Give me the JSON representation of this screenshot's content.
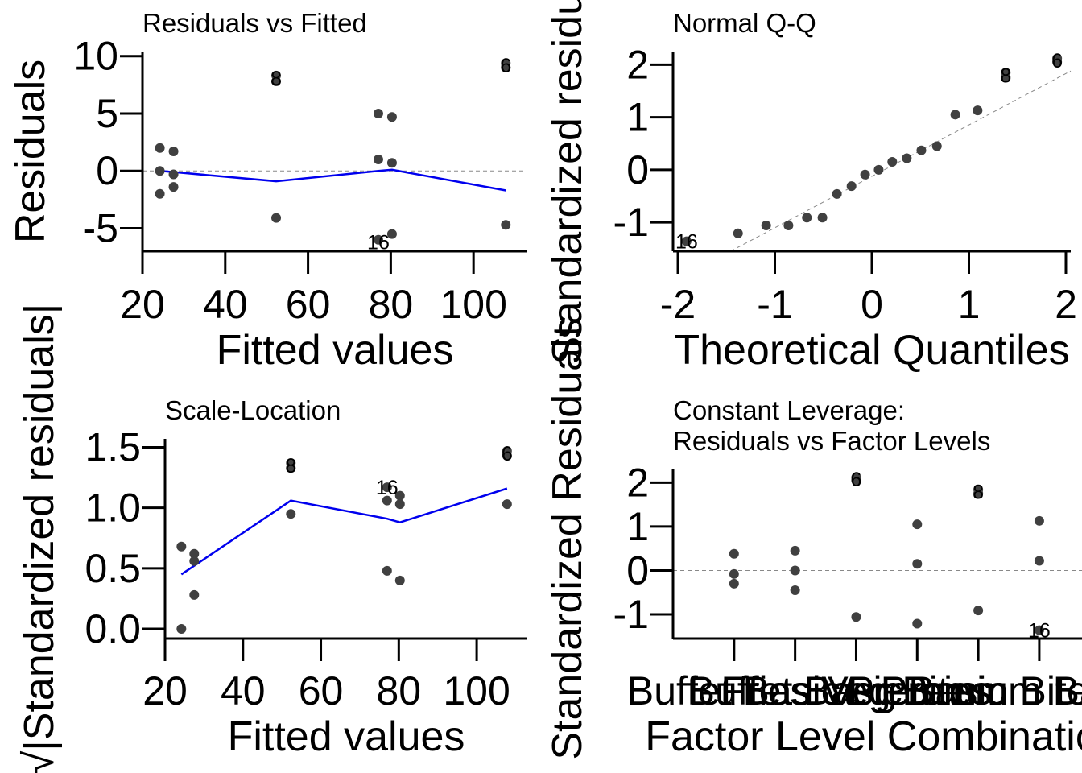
{
  "chart_data": [
    {
      "id": "rvf",
      "type": "scatter",
      "title": "Residuals vs Fitted",
      "xlabel": "Fitted values",
      "ylabel": "Residuals",
      "xlim": [
        20,
        113
      ],
      "ylim": [
        -7,
        10.4
      ],
      "xticks": [
        20,
        40,
        60,
        80,
        100
      ],
      "yticks": [
        -5,
        0,
        5,
        10
      ],
      "xticklabels": [
        "20",
        "40",
        "60",
        "80",
        "100"
      ],
      "yticklabels": [
        "-5",
        "0",
        "5",
        "10"
      ],
      "reference_line": {
        "type": "hline",
        "y": 0
      },
      "points": [
        {
          "x": 24.2,
          "y": 2.0
        },
        {
          "x": 24.2,
          "y": 0.0
        },
        {
          "x": 24.2,
          "y": -2.0
        },
        {
          "x": 27.5,
          "y": 1.7
        },
        {
          "x": 27.5,
          "y": -0.3
        },
        {
          "x": 27.5,
          "y": -1.4
        },
        {
          "x": 52.3,
          "y": 8.3
        },
        {
          "x": 52.3,
          "y": 7.8
        },
        {
          "x": 52.3,
          "y": -4.1
        },
        {
          "x": 77.0,
          "y": 5.0
        },
        {
          "x": 77.0,
          "y": 1.0
        },
        {
          "x": 77.0,
          "y": -6.0
        },
        {
          "x": 80.3,
          "y": 4.7
        },
        {
          "x": 80.3,
          "y": 0.7
        },
        {
          "x": 80.3,
          "y": -5.5
        },
        {
          "x": 107.8,
          "y": 9.4
        },
        {
          "x": 107.8,
          "y": 9.0
        },
        {
          "x": 107.8,
          "y": -4.7
        }
      ],
      "point_labels": [
        {
          "x": 52.3,
          "y": 8.1,
          "text": "8"
        },
        {
          "x": 107.8,
          "y": 9.2,
          "text": "6"
        },
        {
          "x": 77.0,
          "y": -6.2,
          "text": "16"
        }
      ],
      "smoother": {
        "x": [
          24.2,
          27.5,
          52.3,
          77.0,
          80.3,
          107.8
        ],
        "y": [
          0.0,
          -0.1,
          -0.9,
          0.0,
          0.1,
          -1.7
        ]
      }
    },
    {
      "id": "qq",
      "type": "scatter",
      "title": "Normal Q-Q",
      "xlabel": "Theoretical Quantiles",
      "ylabel": "Standardized residuals",
      "xlim": [
        -2.05,
        2.05
      ],
      "ylim": [
        -1.55,
        2.25
      ],
      "xticks": [
        -2,
        -1,
        0,
        1,
        2
      ],
      "yticks": [
        -1,
        0,
        1,
        2
      ],
      "xticklabels": [
        "-2",
        "-1",
        "0",
        "1",
        "2"
      ],
      "yticklabels": [
        "-1",
        "0",
        "1",
        "2"
      ],
      "reference_line": {
        "type": "line",
        "x": [
          -2.05,
          2.05
        ],
        "y": [
          -2.13,
          1.88
        ]
      },
      "points": [
        {
          "x": -1.91,
          "y": -1.36
        },
        {
          "x": -1.38,
          "y": -1.21
        },
        {
          "x": -1.09,
          "y": -1.06
        },
        {
          "x": -0.86,
          "y": -1.06
        },
        {
          "x": -0.67,
          "y": -0.91
        },
        {
          "x": -0.51,
          "y": -0.91
        },
        {
          "x": -0.36,
          "y": -0.46
        },
        {
          "x": -0.21,
          "y": -0.31
        },
        {
          "x": -0.07,
          "y": -0.09
        },
        {
          "x": 0.07,
          "y": 0.0
        },
        {
          "x": 0.21,
          "y": 0.15
        },
        {
          "x": 0.36,
          "y": 0.22
        },
        {
          "x": 0.51,
          "y": 0.37
        },
        {
          "x": 0.67,
          "y": 0.45
        },
        {
          "x": 0.86,
          "y": 1.05
        },
        {
          "x": 1.09,
          "y": 1.13
        },
        {
          "x": 1.38,
          "y": 1.76
        },
        {
          "x": 1.38,
          "y": 1.85
        },
        {
          "x": 1.91,
          "y": 2.05
        },
        {
          "x": 1.91,
          "y": 2.12
        }
      ],
      "point_labels": [
        {
          "x": -1.91,
          "y": -1.36,
          "text": "16"
        },
        {
          "x": 1.38,
          "y": 1.8,
          "text": "8"
        },
        {
          "x": 1.91,
          "y": 2.08,
          "text": "6"
        }
      ]
    },
    {
      "id": "sl",
      "type": "scatter",
      "title": "Scale-Location",
      "xlabel": "Fitted values",
      "ylabel": "√|Standardized residuals|",
      "xlim": [
        20,
        113
      ],
      "ylim": [
        -0.08,
        1.57
      ],
      "xticks": [
        20,
        40,
        60,
        80,
        100
      ],
      "yticks": [
        0.0,
        0.5,
        1.0,
        1.5
      ],
      "xticklabels": [
        "20",
        "40",
        "60",
        "80",
        "100"
      ],
      "yticklabels": [
        "0.0",
        "0.5",
        "1.0",
        "1.5"
      ],
      "points": [
        {
          "x": 24.2,
          "y": 0.68
        },
        {
          "x": 24.2,
          "y": 0.0
        },
        {
          "x": 27.5,
          "y": 0.62
        },
        {
          "x": 27.5,
          "y": 0.56
        },
        {
          "x": 27.5,
          "y": 0.28
        },
        {
          "x": 52.3,
          "y": 1.37
        },
        {
          "x": 52.3,
          "y": 1.33
        },
        {
          "x": 52.3,
          "y": 0.95
        },
        {
          "x": 77.0,
          "y": 1.17
        },
        {
          "x": 77.0,
          "y": 1.06
        },
        {
          "x": 77.0,
          "y": 0.48
        },
        {
          "x": 80.3,
          "y": 1.1
        },
        {
          "x": 80.3,
          "y": 1.03
        },
        {
          "x": 80.3,
          "y": 0.4
        },
        {
          "x": 107.8,
          "y": 1.47
        },
        {
          "x": 107.8,
          "y": 1.43
        },
        {
          "x": 107.8,
          "y": 1.03
        }
      ],
      "point_labels": [
        {
          "x": 52.3,
          "y": 1.35,
          "text": "8"
        },
        {
          "x": 77.0,
          "y": 1.17,
          "text": "16"
        },
        {
          "x": 107.8,
          "y": 1.45,
          "text": "6"
        }
      ],
      "smoother": {
        "x": [
          24.2,
          52.3,
          77.0,
          80.3,
          107.8
        ],
        "y": [
          0.45,
          1.06,
          0.91,
          0.88,
          1.16
        ]
      }
    },
    {
      "id": "rfl",
      "type": "scatter",
      "title": [
        "Constant Leverage:",
        "Residuals vs Factor Levels"
      ],
      "xlabel": "Factor Level Combinatio",
      "ylabel": "Standardized Residuals",
      "xlim": [
        0,
        6.7
      ],
      "ylim": [
        -1.55,
        2.3
      ],
      "xticks": [
        1,
        2,
        3,
        4,
        5,
        6
      ],
      "yticks": [
        -1,
        0,
        1,
        2
      ],
      "xticklabels": [
        "Buffet Basic",
        "Buffet Basic",
        "Fries Veg Bites",
        "Veg Basic",
        "Premium Bites",
        "Premium Basic Bi"
      ],
      "yticklabels": [
        "-1",
        "0",
        "1",
        "2"
      ],
      "reference_line": {
        "type": "hline",
        "y": 0
      },
      "points": [
        {
          "x": 1,
          "y": 0.38
        },
        {
          "x": 1,
          "y": -0.08
        },
        {
          "x": 1,
          "y": -0.3
        },
        {
          "x": 2,
          "y": 0.45
        },
        {
          "x": 2,
          "y": 0.0
        },
        {
          "x": 2,
          "y": -0.45
        },
        {
          "x": 3,
          "y": 2.12
        },
        {
          "x": 3,
          "y": 2.05
        },
        {
          "x": 3,
          "y": -1.06
        },
        {
          "x": 4,
          "y": 1.05
        },
        {
          "x": 4,
          "y": 0.15
        },
        {
          "x": 4,
          "y": -1.21
        },
        {
          "x": 5,
          "y": 1.84
        },
        {
          "x": 5,
          "y": 1.76
        },
        {
          "x": 5,
          "y": -0.91
        },
        {
          "x": 6,
          "y": 1.13
        },
        {
          "x": 6,
          "y": 0.22
        },
        {
          "x": 6,
          "y": -1.36
        }
      ],
      "point_labels": [
        {
          "x": 3,
          "y": 2.08,
          "text": "6"
        },
        {
          "x": 5,
          "y": 1.8,
          "text": "8"
        },
        {
          "x": 6,
          "y": -1.36,
          "text": "16"
        }
      ]
    }
  ]
}
